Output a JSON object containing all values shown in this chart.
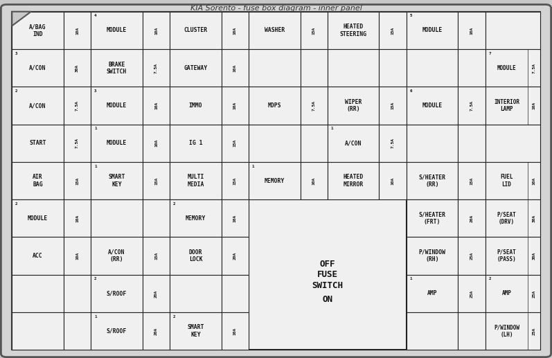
{
  "title": "KIA Sorento - fuse box diagram - inner panel",
  "bg_color": "#c8c8c8",
  "panel_bg": "#e8e8e8",
  "cell_bg": "#f0f0f0",
  "border_color": "#222222",
  "text_color": "#111111",
  "fig_width": 7.97,
  "fig_height": 5.17,
  "cells": [
    {
      "row": 0,
      "col": 0,
      "rowspan": 1,
      "colspan": 1,
      "label": "A/BAG\nIND",
      "amp": "",
      "num": ""
    },
    {
      "row": 0,
      "col": 1,
      "rowspan": 1,
      "colspan": 1,
      "label": "",
      "amp": "10A",
      "num": ""
    },
    {
      "row": 0,
      "col": 2,
      "rowspan": 1,
      "colspan": 1,
      "label": "MODULE",
      "amp": "",
      "num": "4"
    },
    {
      "row": 0,
      "col": 3,
      "rowspan": 1,
      "colspan": 1,
      "label": "",
      "amp": "10A",
      "num": ""
    },
    {
      "row": 0,
      "col": 4,
      "rowspan": 1,
      "colspan": 1,
      "label": "CLUSTER",
      "amp": "",
      "num": ""
    },
    {
      "row": 0,
      "col": 5,
      "rowspan": 1,
      "colspan": 1,
      "label": "",
      "amp": "10A",
      "num": ""
    },
    {
      "row": 0,
      "col": 6,
      "rowspan": 1,
      "colspan": 1,
      "label": "WASHER",
      "amp": "",
      "num": ""
    },
    {
      "row": 0,
      "col": 7,
      "rowspan": 1,
      "colspan": 1,
      "label": "",
      "amp": "15A",
      "num": ""
    },
    {
      "row": 0,
      "col": 8,
      "rowspan": 1,
      "colspan": 1,
      "label": "HEATED\nSTEERING",
      "amp": "",
      "num": ""
    },
    {
      "row": 0,
      "col": 9,
      "rowspan": 1,
      "colspan": 1,
      "label": "",
      "amp": "15A",
      "num": ""
    },
    {
      "row": 0,
      "col": 10,
      "rowspan": 1,
      "colspan": 1,
      "label": "MODULE",
      "amp": "",
      "num": "5"
    },
    {
      "row": 0,
      "col": 11,
      "rowspan": 1,
      "colspan": 1,
      "label": "",
      "amp": "10A",
      "num": ""
    },
    {
      "row": 0,
      "col": 12,
      "rowspan": 1,
      "colspan": 1,
      "label": "",
      "amp": "",
      "num": ""
    },
    {
      "row": 1,
      "col": 0,
      "rowspan": 1,
      "colspan": 1,
      "label": "A/CON",
      "amp": "",
      "num": "3"
    },
    {
      "row": 1,
      "col": 1,
      "rowspan": 1,
      "colspan": 1,
      "label": "",
      "amp": "30A",
      "num": ""
    },
    {
      "row": 1,
      "col": 2,
      "rowspan": 1,
      "colspan": 1,
      "label": "BRAKE\nSWITCH",
      "amp": "",
      "num": ""
    },
    {
      "row": 1,
      "col": 3,
      "rowspan": 1,
      "colspan": 1,
      "label": "",
      "amp": "7.5A",
      "num": ""
    },
    {
      "row": 1,
      "col": 4,
      "rowspan": 1,
      "colspan": 1,
      "label": "GATEWAY",
      "amp": "",
      "num": ""
    },
    {
      "row": 1,
      "col": 5,
      "rowspan": 1,
      "colspan": 1,
      "label": "",
      "amp": "10A",
      "num": ""
    },
    {
      "row": 1,
      "col": 6,
      "rowspan": 1,
      "colspan": 1,
      "label": "",
      "amp": "",
      "num": ""
    },
    {
      "row": 1,
      "col": 7,
      "rowspan": 1,
      "colspan": 1,
      "label": "",
      "amp": "",
      "num": ""
    },
    {
      "row": 1,
      "col": 8,
      "rowspan": 1,
      "colspan": 1,
      "label": "",
      "amp": "",
      "num": ""
    },
    {
      "row": 1,
      "col": 9,
      "rowspan": 1,
      "colspan": 1,
      "label": "",
      "amp": "",
      "num": ""
    },
    {
      "row": 1,
      "col": 10,
      "rowspan": 1,
      "colspan": 1,
      "label": "",
      "amp": "",
      "num": ""
    },
    {
      "row": 1,
      "col": 11,
      "rowspan": 1,
      "colspan": 1,
      "label": "",
      "amp": "",
      "num": ""
    },
    {
      "row": 1,
      "col": 12,
      "rowspan": 1,
      "colspan": 1,
      "label": "MODULE",
      "amp": "7.5A",
      "num": "7",
      "amp_side": "right"
    },
    {
      "row": 2,
      "col": 0,
      "rowspan": 1,
      "colspan": 1,
      "label": "A/CON",
      "amp": "",
      "num": "2"
    },
    {
      "row": 2,
      "col": 1,
      "rowspan": 1,
      "colspan": 1,
      "label": "",
      "amp": "7.5A",
      "num": ""
    },
    {
      "row": 2,
      "col": 2,
      "rowspan": 1,
      "colspan": 1,
      "label": "MODULE",
      "amp": "",
      "num": "3"
    },
    {
      "row": 2,
      "col": 3,
      "rowspan": 1,
      "colspan": 1,
      "label": "",
      "amp": "10A",
      "num": ""
    },
    {
      "row": 2,
      "col": 4,
      "rowspan": 1,
      "colspan": 1,
      "label": "IMMO",
      "amp": "",
      "num": ""
    },
    {
      "row": 2,
      "col": 5,
      "rowspan": 1,
      "colspan": 1,
      "label": "",
      "amp": "10A",
      "num": ""
    },
    {
      "row": 2,
      "col": 6,
      "rowspan": 1,
      "colspan": 1,
      "label": "MDPS",
      "amp": "",
      "num": ""
    },
    {
      "row": 2,
      "col": 7,
      "rowspan": 1,
      "colspan": 1,
      "label": "",
      "amp": "7.5A",
      "num": ""
    },
    {
      "row": 2,
      "col": 8,
      "rowspan": 1,
      "colspan": 1,
      "label": "WIPER\n(RR)",
      "amp": "",
      "num": ""
    },
    {
      "row": 2,
      "col": 9,
      "rowspan": 1,
      "colspan": 1,
      "label": "",
      "amp": "15A",
      "num": ""
    },
    {
      "row": 2,
      "col": 10,
      "rowspan": 1,
      "colspan": 1,
      "label": "MODULE",
      "amp": "",
      "num": "6"
    },
    {
      "row": 2,
      "col": 11,
      "rowspan": 1,
      "colspan": 1,
      "label": "",
      "amp": "7.5A",
      "num": ""
    },
    {
      "row": 2,
      "col": 12,
      "rowspan": 1,
      "colspan": 1,
      "label": "INTERIOR\nLAMP",
      "amp": "10A",
      "num": "",
      "amp_side": "right"
    },
    {
      "row": 3,
      "col": 0,
      "rowspan": 1,
      "colspan": 1,
      "label": "START",
      "amp": "",
      "num": ""
    },
    {
      "row": 3,
      "col": 1,
      "rowspan": 1,
      "colspan": 1,
      "label": "",
      "amp": "7.5A",
      "num": ""
    },
    {
      "row": 3,
      "col": 2,
      "rowspan": 1,
      "colspan": 1,
      "label": "MODULE",
      "amp": "",
      "num": "1"
    },
    {
      "row": 3,
      "col": 3,
      "rowspan": 1,
      "colspan": 1,
      "label": "",
      "amp": "10A",
      "num": ""
    },
    {
      "row": 3,
      "col": 4,
      "rowspan": 1,
      "colspan": 1,
      "label": "IG 1",
      "amp": "",
      "num": ""
    },
    {
      "row": 3,
      "col": 5,
      "rowspan": 1,
      "colspan": 1,
      "label": "",
      "amp": "15A",
      "num": ""
    },
    {
      "row": 3,
      "col": 6,
      "rowspan": 1,
      "colspan": 1,
      "label": "",
      "amp": "",
      "num": ""
    },
    {
      "row": 3,
      "col": 7,
      "rowspan": 1,
      "colspan": 1,
      "label": "",
      "amp": "",
      "num": ""
    },
    {
      "row": 3,
      "col": 8,
      "rowspan": 1,
      "colspan": 1,
      "label": "A/CON",
      "amp": "",
      "num": "1"
    },
    {
      "row": 3,
      "col": 9,
      "rowspan": 1,
      "colspan": 1,
      "label": "",
      "amp": "7.5A",
      "num": ""
    },
    {
      "row": 3,
      "col": 10,
      "rowspan": 1,
      "colspan": 1,
      "label": "",
      "amp": "",
      "num": ""
    },
    {
      "row": 3,
      "col": 11,
      "rowspan": 1,
      "colspan": 1,
      "label": "",
      "amp": "",
      "num": ""
    },
    {
      "row": 3,
      "col": 12,
      "rowspan": 1,
      "colspan": 1,
      "label": "",
      "amp": "",
      "num": ""
    },
    {
      "row": 4,
      "col": 0,
      "rowspan": 1,
      "colspan": 1,
      "label": "AIR\nBAG",
      "amp": "",
      "num": ""
    },
    {
      "row": 4,
      "col": 1,
      "rowspan": 1,
      "colspan": 1,
      "label": "",
      "amp": "15A",
      "num": ""
    },
    {
      "row": 4,
      "col": 2,
      "rowspan": 1,
      "colspan": 1,
      "label": "SMART\nKEY",
      "amp": "",
      "num": "1"
    },
    {
      "row": 4,
      "col": 3,
      "rowspan": 1,
      "colspan": 1,
      "label": "",
      "amp": "15A",
      "num": ""
    },
    {
      "row": 4,
      "col": 4,
      "rowspan": 1,
      "colspan": 1,
      "label": "MULTI\nMEDIA",
      "amp": "",
      "num": ""
    },
    {
      "row": 4,
      "col": 5,
      "rowspan": 1,
      "colspan": 1,
      "label": "",
      "amp": "15A",
      "num": ""
    },
    {
      "row": 4,
      "col": 6,
      "rowspan": 1,
      "colspan": 1,
      "label": "MEMORY",
      "amp": "",
      "num": "1"
    },
    {
      "row": 4,
      "col": 7,
      "rowspan": 1,
      "colspan": 1,
      "label": "",
      "amp": "10A",
      "num": ""
    },
    {
      "row": 4,
      "col": 8,
      "rowspan": 1,
      "colspan": 1,
      "label": "HEATED\nMIRROR",
      "amp": "",
      "num": ""
    },
    {
      "row": 4,
      "col": 9,
      "rowspan": 1,
      "colspan": 1,
      "label": "",
      "amp": "10A",
      "num": ""
    },
    {
      "row": 4,
      "col": 10,
      "rowspan": 1,
      "colspan": 1,
      "label": "S/HEATER\n(RR)",
      "amp": "",
      "num": ""
    },
    {
      "row": 4,
      "col": 11,
      "rowspan": 1,
      "colspan": 1,
      "label": "",
      "amp": "15A",
      "num": ""
    },
    {
      "row": 4,
      "col": 12,
      "rowspan": 1,
      "colspan": 1,
      "label": "FUEL\nLID",
      "amp": "10A",
      "num": "",
      "amp_side": "right"
    },
    {
      "row": 5,
      "col": 0,
      "rowspan": 1,
      "colspan": 1,
      "label": "MODULE",
      "amp": "",
      "num": "2"
    },
    {
      "row": 5,
      "col": 1,
      "rowspan": 1,
      "colspan": 1,
      "label": "",
      "amp": "10A",
      "num": ""
    },
    {
      "row": 5,
      "col": 2,
      "rowspan": 1,
      "colspan": 1,
      "label": "",
      "amp": "",
      "num": ""
    },
    {
      "row": 5,
      "col": 3,
      "rowspan": 1,
      "colspan": 1,
      "label": "",
      "amp": "",
      "num": ""
    },
    {
      "row": 5,
      "col": 4,
      "rowspan": 1,
      "colspan": 1,
      "label": "MEMORY",
      "amp": "",
      "num": "2"
    },
    {
      "row": 5,
      "col": 5,
      "rowspan": 1,
      "colspan": 1,
      "label": "",
      "amp": "10A",
      "num": ""
    },
    {
      "row": 5,
      "col": 10,
      "rowspan": 1,
      "colspan": 1,
      "label": "S/HEATER\n(FRT)",
      "amp": "",
      "num": ""
    },
    {
      "row": 5,
      "col": 11,
      "rowspan": 1,
      "colspan": 1,
      "label": "",
      "amp": "20A",
      "num": ""
    },
    {
      "row": 5,
      "col": 12,
      "rowspan": 1,
      "colspan": 1,
      "label": "P/SEAT\n(DRV)",
      "amp": "30A",
      "num": "",
      "amp_side": "right"
    },
    {
      "row": 6,
      "col": 0,
      "rowspan": 1,
      "colspan": 1,
      "label": "ACC",
      "amp": "",
      "num": ""
    },
    {
      "row": 6,
      "col": 1,
      "rowspan": 1,
      "colspan": 1,
      "label": "",
      "amp": "10A",
      "num": ""
    },
    {
      "row": 6,
      "col": 2,
      "rowspan": 1,
      "colspan": 1,
      "label": "A/CON\n(RR)",
      "amp": "",
      "num": ""
    },
    {
      "row": 6,
      "col": 3,
      "rowspan": 1,
      "colspan": 1,
      "label": "",
      "amp": "15A",
      "num": ""
    },
    {
      "row": 6,
      "col": 4,
      "rowspan": 1,
      "colspan": 1,
      "label": "DOOR\nLOCK",
      "amp": "",
      "num": ""
    },
    {
      "row": 6,
      "col": 5,
      "rowspan": 1,
      "colspan": 1,
      "label": "",
      "amp": "20A",
      "num": ""
    },
    {
      "row": 6,
      "col": 10,
      "rowspan": 1,
      "colspan": 1,
      "label": "P/WINDOW\n(RH)",
      "amp": "",
      "num": ""
    },
    {
      "row": 6,
      "col": 11,
      "rowspan": 1,
      "colspan": 1,
      "label": "",
      "amp": "25A",
      "num": ""
    },
    {
      "row": 6,
      "col": 12,
      "rowspan": 1,
      "colspan": 1,
      "label": "P/SEAT\n(PASS)",
      "amp": "30A",
      "num": "",
      "amp_side": "right"
    },
    {
      "row": 7,
      "col": 0,
      "rowspan": 1,
      "colspan": 1,
      "label": "",
      "amp": "",
      "num": ""
    },
    {
      "row": 7,
      "col": 1,
      "rowspan": 1,
      "colspan": 1,
      "label": "",
      "amp": "",
      "num": ""
    },
    {
      "row": 7,
      "col": 2,
      "rowspan": 1,
      "colspan": 1,
      "label": "S/ROOF",
      "amp": "",
      "num": "2"
    },
    {
      "row": 7,
      "col": 3,
      "rowspan": 1,
      "colspan": 1,
      "label": "",
      "amp": "20A",
      "num": ""
    },
    {
      "row": 7,
      "col": 4,
      "rowspan": 1,
      "colspan": 1,
      "label": "",
      "amp": "",
      "num": ""
    },
    {
      "row": 7,
      "col": 5,
      "rowspan": 1,
      "colspan": 1,
      "label": "",
      "amp": "",
      "num": ""
    },
    {
      "row": 7,
      "col": 10,
      "rowspan": 1,
      "colspan": 1,
      "label": "AMP",
      "amp": "",
      "num": "1"
    },
    {
      "row": 7,
      "col": 11,
      "rowspan": 1,
      "colspan": 1,
      "label": "",
      "amp": "25A",
      "num": ""
    },
    {
      "row": 7,
      "col": 12,
      "rowspan": 1,
      "colspan": 1,
      "label": "AMP",
      "amp": "25A",
      "num": "2",
      "amp_side": "right"
    },
    {
      "row": 8,
      "col": 0,
      "rowspan": 1,
      "colspan": 1,
      "label": "",
      "amp": "",
      "num": ""
    },
    {
      "row": 8,
      "col": 1,
      "rowspan": 1,
      "colspan": 1,
      "label": "",
      "amp": "",
      "num": ""
    },
    {
      "row": 8,
      "col": 2,
      "rowspan": 1,
      "colspan": 1,
      "label": "S/ROOF",
      "amp": "",
      "num": "1"
    },
    {
      "row": 8,
      "col": 3,
      "rowspan": 1,
      "colspan": 1,
      "label": "",
      "amp": "20A",
      "num": ""
    },
    {
      "row": 8,
      "col": 4,
      "rowspan": 1,
      "colspan": 1,
      "label": "SMART\nKEY",
      "amp": "",
      "num": "2"
    },
    {
      "row": 8,
      "col": 5,
      "rowspan": 1,
      "colspan": 1,
      "label": "",
      "amp": "10A",
      "num": ""
    },
    {
      "row": 8,
      "col": 10,
      "rowspan": 1,
      "colspan": 1,
      "label": "",
      "amp": "",
      "num": ""
    },
    {
      "row": 8,
      "col": 11,
      "rowspan": 1,
      "colspan": 1,
      "label": "",
      "amp": "",
      "num": ""
    },
    {
      "row": 8,
      "col": 12,
      "rowspan": 1,
      "colspan": 1,
      "label": "P/WINDOW\n(LH)",
      "amp": "25A",
      "num": "",
      "amp_side": "right"
    }
  ]
}
